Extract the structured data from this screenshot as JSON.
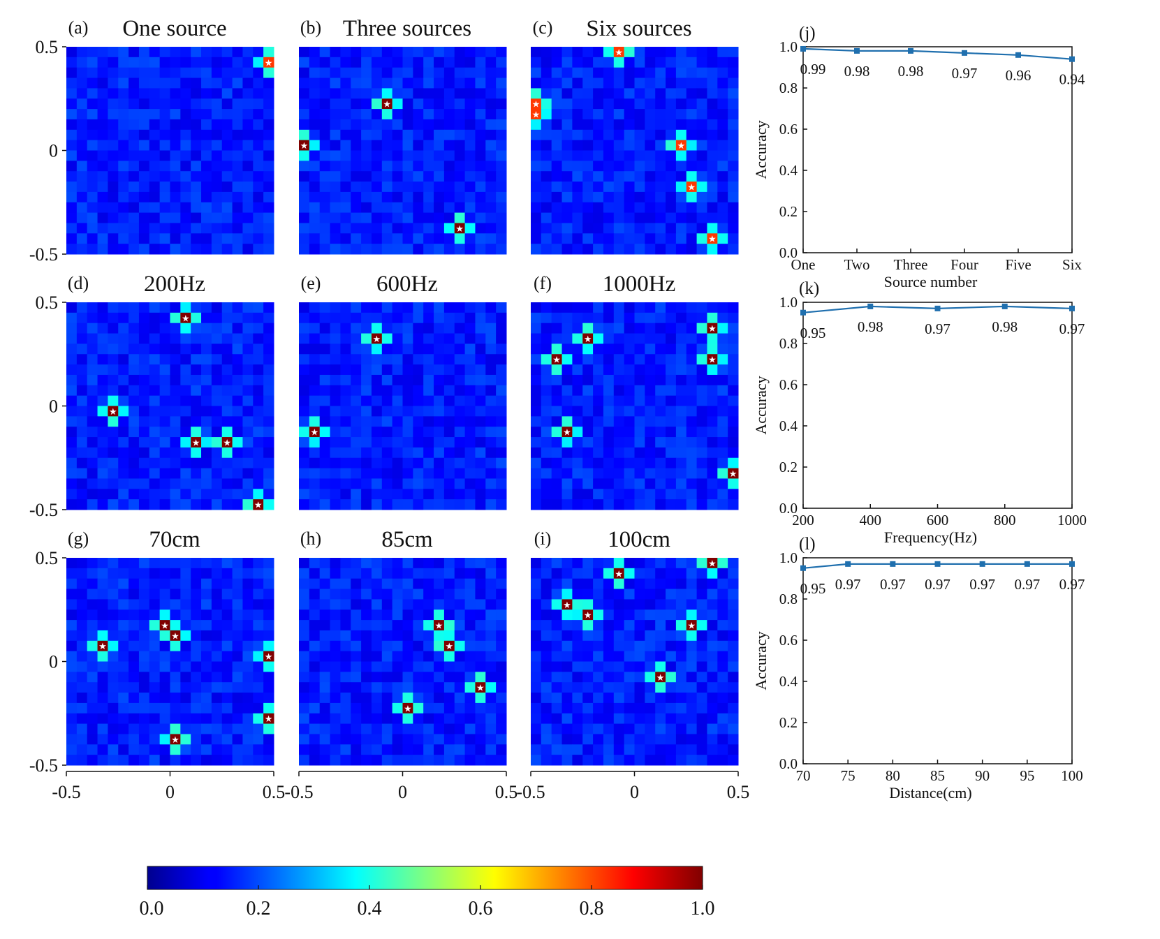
{
  "colorbar": {
    "ticks": [
      "0.0",
      "0.2",
      "0.4",
      "0.6",
      "0.8",
      "1.0"
    ],
    "tick_values": [
      0.0,
      0.2,
      0.4,
      0.6,
      0.8,
      1.0
    ],
    "colormap": "jet",
    "range": [
      0,
      1
    ]
  },
  "heatmap_axes": {
    "y_ticks": [
      "0.5",
      "0",
      "-0.5"
    ],
    "x_ticks": [
      "-0.5",
      "0",
      "0.5"
    ],
    "range": [
      -0.5,
      0.5
    ],
    "grid_size": 20
  },
  "chart_data": [
    {
      "type": "heatmap",
      "panel": "(a)",
      "title": "One source",
      "sources": [
        [
          0.46,
          0.41
        ]
      ]
    },
    {
      "type": "heatmap",
      "panel": "(b)",
      "title": "Three sources",
      "sources": [
        [
          -0.06,
          0.21
        ],
        [
          -0.48,
          0.02
        ],
        [
          0.25,
          -0.35
        ]
      ]
    },
    {
      "type": "heatmap",
      "panel": "(c)",
      "title": "Six sources",
      "sources": [
        [
          -0.06,
          0.45
        ],
        [
          -0.48,
          0.21
        ],
        [
          -0.48,
          0.16
        ],
        [
          0.2,
          0.02
        ],
        [
          0.28,
          -0.16
        ],
        [
          0.39,
          -0.44
        ]
      ]
    },
    {
      "type": "heatmap",
      "panel": "(d)",
      "title": "200Hz",
      "sources": [
        [
          0.08,
          0.4
        ],
        [
          -0.3,
          -0.03
        ],
        [
          0.12,
          -0.17
        ],
        [
          0.26,
          -0.17
        ],
        [
          0.41,
          -0.45
        ]
      ]
    },
    {
      "type": "heatmap",
      "panel": "(e)",
      "title": "600Hz",
      "sources": [
        [
          -0.13,
          0.31
        ],
        [
          -0.42,
          -0.12
        ]
      ]
    },
    {
      "type": "heatmap",
      "panel": "(f)",
      "title": "1000Hz",
      "sources": [
        [
          -0.39,
          0.21
        ],
        [
          -0.21,
          0.31
        ],
        [
          0.35,
          0.36
        ],
        [
          0.35,
          0.21
        ],
        [
          -0.31,
          -0.12
        ],
        [
          0.45,
          -0.31
        ]
      ]
    },
    {
      "type": "heatmap",
      "panel": "(g)",
      "title": "70cm",
      "sources": [
        [
          -0.35,
          0.07
        ],
        [
          -0.02,
          0.2
        ],
        [
          0.03,
          0.11
        ],
        [
          0.45,
          0.02
        ],
        [
          0.45,
          -0.26
        ],
        [
          0.03,
          -0.35
        ]
      ]
    },
    {
      "type": "heatmap",
      "panel": "(h)",
      "title": "85cm",
      "sources": [
        [
          0.16,
          0.16
        ],
        [
          0.21,
          0.07
        ],
        [
          0.39,
          -0.12
        ],
        [
          0.02,
          -0.21
        ]
      ]
    },
    {
      "type": "heatmap",
      "panel": "(i)",
      "title": "100cm",
      "sources": [
        [
          -0.35,
          0.3
        ],
        [
          -0.22,
          0.25
        ],
        [
          -0.07,
          0.4
        ],
        [
          0.35,
          0.45
        ],
        [
          0.29,
          0.16
        ],
        [
          0.12,
          -0.07
        ]
      ]
    },
    {
      "type": "line",
      "panel": "(j)",
      "title": "",
      "xlabel": "Source number",
      "ylabel": "Accuracy",
      "categories": [
        "One",
        "Two",
        "Three",
        "Four",
        "Five",
        "Six"
      ],
      "values": [
        0.99,
        0.98,
        0.98,
        0.97,
        0.96,
        0.94
      ],
      "point_labels": [
        "0.99",
        "0.98",
        "0.98",
        "0.97",
        "0.96",
        "0.94"
      ],
      "ylim": [
        0.0,
        1.0
      ],
      "y_ticks": [
        "0.0",
        "0.2",
        "0.4",
        "0.6",
        "0.8",
        "1.0"
      ],
      "color": "#1f6fae"
    },
    {
      "type": "line",
      "panel": "(k)",
      "title": "",
      "xlabel": "Frequency(Hz)",
      "ylabel": "Accuracy",
      "x": [
        200,
        400,
        600,
        800,
        1000
      ],
      "x_ticks": [
        "200",
        "400",
        "600",
        "800",
        "1000"
      ],
      "xlim": [
        200,
        1000
      ],
      "values": [
        0.95,
        0.98,
        0.97,
        0.98,
        0.97
      ],
      "point_labels": [
        "0.95",
        "0.98",
        "0.97",
        "0.98",
        "0.97"
      ],
      "ylim": [
        0.0,
        1.0
      ],
      "y_ticks": [
        "0.0",
        "0.2",
        "0.4",
        "0.6",
        "0.8",
        "1.0"
      ],
      "color": "#1f6fae"
    },
    {
      "type": "line",
      "panel": "(l)",
      "title": "",
      "xlabel": "Distance(cm)",
      "ylabel": "Accuracy",
      "x": [
        70,
        75,
        80,
        85,
        90,
        95,
        100
      ],
      "x_ticks": [
        "70",
        "75",
        "80",
        "85",
        "90",
        "95",
        "100"
      ],
      "xlim": [
        70,
        100
      ],
      "values": [
        0.95,
        0.97,
        0.97,
        0.97,
        0.97,
        0.97,
        0.97
      ],
      "point_labels": [
        "0.95",
        "0.97",
        "0.97",
        "0.97",
        "0.97",
        "0.97",
        "0.97"
      ],
      "ylim": [
        0.0,
        1.0
      ],
      "y_ticks": [
        "0.0",
        "0.2",
        "0.4",
        "0.6",
        "0.8",
        "1.0"
      ],
      "color": "#1f6fae"
    }
  ]
}
